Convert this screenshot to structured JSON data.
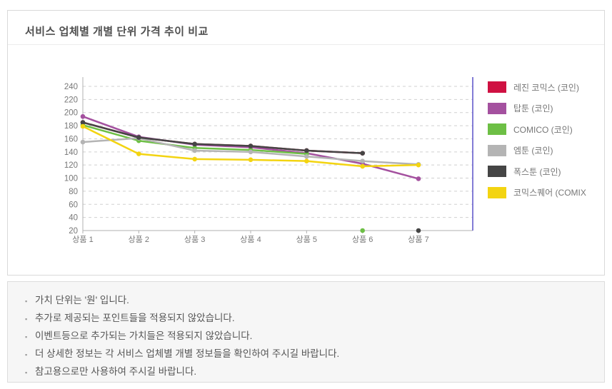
{
  "card": {
    "title": "서비스 업체별 개별 단위 가격 추이 비교"
  },
  "chart_data": {
    "type": "line",
    "title": "서비스 업체별 개별 단위 가격 추이 비교",
    "unit_note": "가치 단위: 원",
    "categories": [
      "상품 1",
      "상품 2",
      "상품 3",
      "상품 4",
      "상품 5",
      "상품 6",
      "상품 7"
    ],
    "ylim": [
      20,
      240
    ],
    "ytick_step": 20,
    "grid": true,
    "legend_position": "right",
    "series": [
      {
        "name": "레진 코믹스 (코인)",
        "color": "#cf1142",
        "values": [
          185,
          162,
          152,
          149,
          142,
          138,
          null
        ]
      },
      {
        "name": "탑툰 (코인)",
        "color": "#a4519f",
        "values": [
          194,
          163,
          151,
          147,
          138,
          122,
          99
        ]
      },
      {
        "name": "COMICO (코인)",
        "color": "#6dbf45",
        "values": [
          181,
          157,
          146,
          143,
          137,
          null,
          null
        ]
      },
      {
        "name": "엠툰 (코인)",
        "color": "#b4b4b4",
        "values": [
          155,
          161,
          142,
          140,
          133,
          126,
          121
        ]
      },
      {
        "name": "폭스툰 (코인)",
        "color": "#454545",
        "values": [
          185,
          162,
          152,
          149,
          142,
          138,
          null
        ]
      },
      {
        "name": "코믹스퀘어 (COMIX",
        "color": "#f3d411",
        "values": [
          179,
          137,
          129,
          128,
          126,
          118,
          120
        ]
      }
    ],
    "baseline_markers": [
      {
        "series": "COMICO (코인)",
        "category": "상품 6",
        "value": 20,
        "color": "#6dbf45"
      },
      {
        "series": "폭스툰 (코인)",
        "category": "상품 7",
        "value": 20,
        "color": "#454545"
      }
    ],
    "colors": {
      "grid_line": "#d0d0d0",
      "axis_line": "#b0b0b0",
      "right_axis_line": "#5a50c8",
      "tick_label": "#777777"
    }
  },
  "notes": {
    "bullet": "▪",
    "items": [
      "가치 단위는 '원' 입니다.",
      "추가로 제공되는 포인트들을 적용되지 않았습니다.",
      "이벤트등으로 추가되는 가치들은 적용되지 않았습니다.",
      "더 상세한 정보는 각 서비스 업체별 개별 정보들을 확인하여 주시길 바랍니다.",
      "참고용으로만 사용하여 주시길 바랍니다."
    ]
  }
}
